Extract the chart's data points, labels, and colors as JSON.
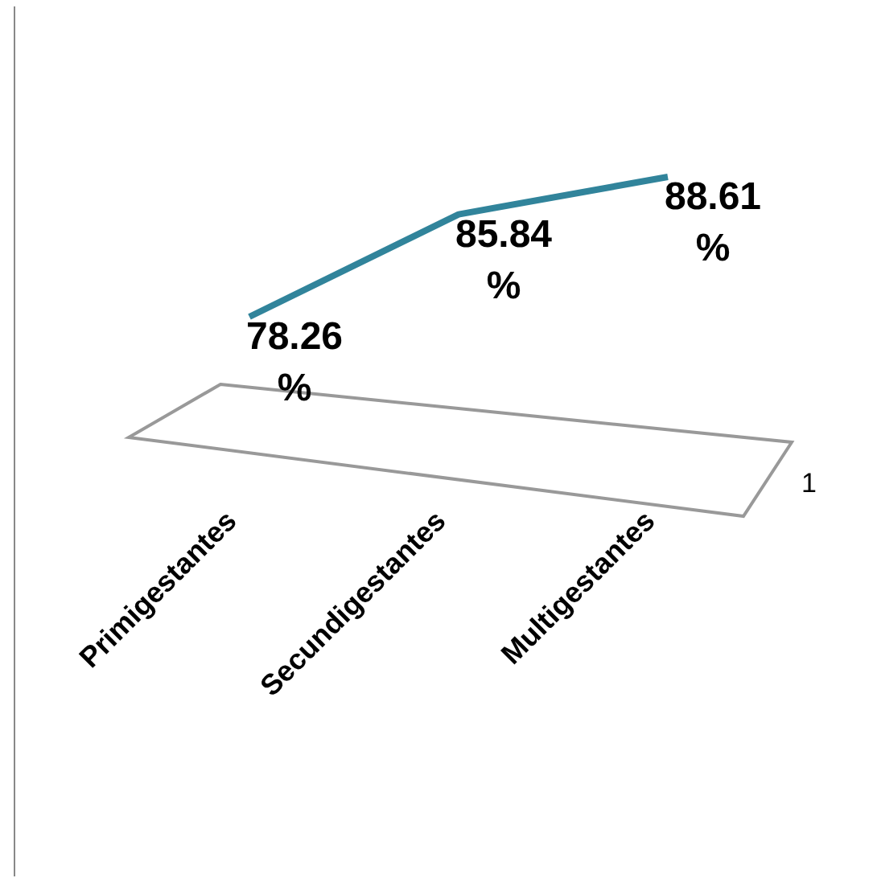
{
  "chart_data": {
    "type": "line",
    "categories": [
      "Primigestantes",
      "Secundigestantes",
      "Multigestantes"
    ],
    "series": [
      {
        "name": "1",
        "color": "#31849b",
        "values": [
          78.26,
          85.84,
          88.61
        ],
        "value_labels": [
          "78.26 %",
          "85.84 %",
          "88.61 %"
        ]
      }
    ],
    "marker": "none"
  }
}
